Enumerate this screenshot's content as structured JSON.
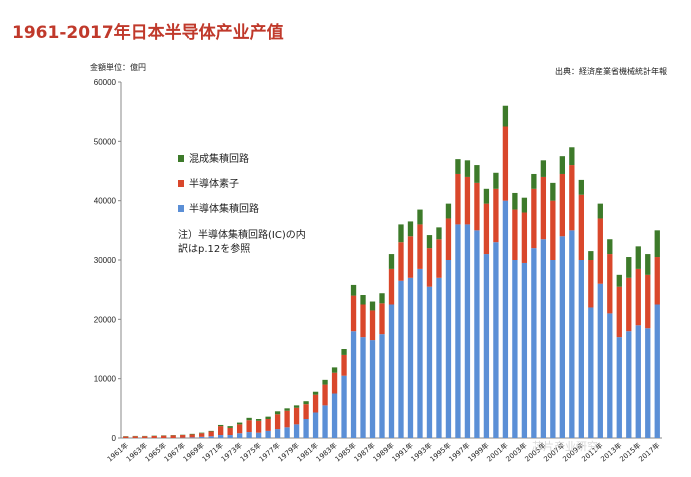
{
  "title": "1961-2017年日本半导体产业产值",
  "unit_label": "金額単位：億円",
  "source_label": "出典：経済産業省機械統計年報",
  "watermark": "芯片产业研究",
  "colors": {
    "ic": "#5b8fd6",
    "discrete": "#d9472b",
    "hybrid": "#3d7a2a",
    "axis": "#888888",
    "grid": "#dddddd"
  },
  "chart_data": {
    "type": "bar",
    "stacked": true,
    "xlabel": "",
    "ylabel": "",
    "ylim": [
      0,
      60000
    ],
    "yticks": [
      0,
      10000,
      20000,
      30000,
      40000,
      50000,
      60000
    ],
    "grid": false,
    "legend_position": "upper-left",
    "note": "注）半導体集積回路(IC)の内訳はp.12を参照",
    "categories": [
      "1961",
      "1962",
      "1963",
      "1964",
      "1965",
      "1966",
      "1967",
      "1968",
      "1969",
      "1970",
      "1971",
      "1972",
      "1973",
      "1974",
      "1975",
      "1976",
      "1977",
      "1978",
      "1979",
      "1980",
      "1981",
      "1982",
      "1983",
      "1984",
      "1985",
      "1986",
      "1987",
      "1988",
      "1989",
      "1990",
      "1991",
      "1992",
      "1993",
      "1994",
      "1995",
      "1996",
      "1997",
      "1998",
      "1999",
      "2000",
      "2001",
      "2002",
      "2003",
      "2004",
      "2005",
      "2006",
      "2007",
      "2008",
      "2009",
      "2010",
      "2011",
      "2012",
      "2013",
      "2014",
      "2015",
      "2016",
      "2017"
    ],
    "x_tick_labels": [
      "1961年",
      "1963年",
      "1965年",
      "1967年",
      "1969年",
      "1971年",
      "1973年",
      "1975年",
      "1977年",
      "1979年",
      "1981年",
      "1983年",
      "1985年",
      "1987年",
      "1989年",
      "1991年",
      "1993年",
      "1995年",
      "1997年",
      "1999年",
      "2001年",
      "2003年",
      "2005年",
      "2007年",
      "2009年",
      "2011年",
      "2013年",
      "2015年",
      "2017年"
    ],
    "series": [
      {
        "name": "半導体集積回路",
        "values": [
          0,
          0,
          0,
          0,
          0,
          0,
          50,
          100,
          200,
          300,
          500,
          500,
          800,
          1000,
          900,
          1200,
          1500,
          1800,
          2300,
          3200,
          4300,
          5500,
          7500,
          10500,
          18000,
          17000,
          16500,
          17500,
          22500,
          26500,
          27000,
          28500,
          25500,
          27000,
          30000,
          36000,
          36000,
          35000,
          31000,
          33000,
          40000,
          30000,
          29500,
          32000,
          33500,
          30000,
          34000,
          35000,
          30000,
          22000,
          26000,
          21000,
          17000,
          18000,
          19000,
          18500,
          22500
        ]
      },
      {
        "name": "半導体素子",
        "values": [
          250,
          300,
          300,
          350,
          400,
          450,
          450,
          500,
          600,
          800,
          1500,
          1200,
          1500,
          2000,
          2000,
          2000,
          2500,
          2800,
          2800,
          2500,
          3000,
          3500,
          3500,
          3500,
          6000,
          5500,
          5000,
          5200,
          6000,
          6500,
          7000,
          7500,
          6500,
          6500,
          7000,
          8500,
          8000,
          8000,
          8500,
          9000,
          12500,
          8500,
          8500,
          10000,
          10500,
          10000,
          10500,
          11000,
          11000,
          8000,
          11000,
          10000,
          8500,
          9000,
          9500,
          9000,
          8000
        ]
      },
      {
        "name": "混成集積回路",
        "values": [
          50,
          50,
          50,
          50,
          50,
          50,
          50,
          100,
          100,
          100,
          200,
          300,
          300,
          400,
          300,
          400,
          500,
          400,
          400,
          500,
          500,
          800,
          900,
          1000,
          1800,
          1600,
          1500,
          1700,
          2500,
          3000,
          2500,
          2500,
          2200,
          2000,
          2500,
          2500,
          2800,
          3000,
          2500,
          2700,
          3500,
          2800,
          2500,
          2500,
          2800,
          3000,
          3000,
          3000,
          2500,
          1500,
          2500,
          2500,
          2000,
          3500,
          3800,
          3500,
          4500
        ]
      }
    ]
  }
}
